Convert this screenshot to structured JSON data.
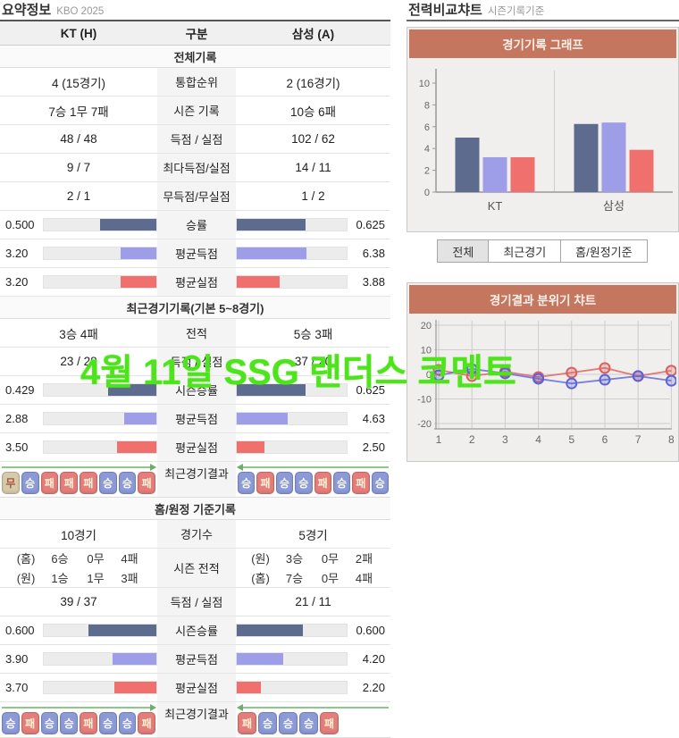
{
  "summary": {
    "title": "요약정보",
    "subtitle": "KBO 2025",
    "columns": {
      "home": "KT (H)",
      "label": "구분",
      "away": "삼성 (A)"
    },
    "badge_colors": {
      "승": "#8c9ad8",
      "패": "#e57e7b",
      "무": "#d5caa9"
    },
    "badge_text_colors": {
      "승": "#ffffff",
      "패": "#fdf3d8",
      "무": "#a8553f"
    },
    "sections": [
      {
        "header": "전체기록",
        "rows": [
          {
            "type": "text",
            "label": "통합순위",
            "home": "4 (15경기)",
            "away": "2 (16경기)"
          },
          {
            "type": "text",
            "label": "시즌 기록",
            "home": "7승 1무 7패",
            "away": "10승 6패"
          },
          {
            "type": "text",
            "label": "득점 / 실점",
            "home": "48 / 48",
            "away": "102 / 62"
          },
          {
            "type": "text",
            "label": "최다득점/실점",
            "home": "9 / 7",
            "away": "14 / 11"
          },
          {
            "type": "text",
            "label": "무득점/무실점",
            "home": "2 / 1",
            "away": "1 / 2"
          },
          {
            "type": "bar",
            "label": "승률",
            "home": "0.500",
            "away": "0.625",
            "home_pct": 50,
            "away_pct": 62.5,
            "color": "#5d6c8e"
          },
          {
            "type": "bar",
            "label": "평균득점",
            "home": "3.20",
            "away": "6.38",
            "home_pct": 32,
            "away_pct": 63.8,
            "color": "#9d9de8"
          },
          {
            "type": "bar",
            "label": "평균실점",
            "home": "3.20",
            "away": "3.88",
            "home_pct": 32,
            "away_pct": 38.8,
            "color": "#f0706e"
          }
        ]
      },
      {
        "header": "최근경기기록(기본 5~8경기)",
        "rows": [
          {
            "type": "text",
            "label": "전적",
            "home": "3승 4패",
            "away": "5승 3패"
          },
          {
            "type": "text",
            "label": "득점 / 실점",
            "home": "23 / 28",
            "away": "37 / 20"
          },
          {
            "type": "bar",
            "label": "시즌승률",
            "home": "0.429",
            "away": "0.625",
            "home_pct": 42.9,
            "away_pct": 62.5,
            "color": "#5d6c8e"
          },
          {
            "type": "bar",
            "label": "평균득점",
            "home": "2.88",
            "away": "4.63",
            "home_pct": 28.8,
            "away_pct": 46.3,
            "color": "#9d9de8"
          },
          {
            "type": "bar",
            "label": "평균실점",
            "home": "3.50",
            "away": "2.50",
            "home_pct": 35,
            "away_pct": 25,
            "color": "#f0706e"
          },
          {
            "type": "badges",
            "label": "최근경기결과",
            "home": [
              "무",
              "승",
              "패",
              "패",
              "패",
              "승",
              "승",
              "패"
            ],
            "away": [
              "승",
              "패",
              "승",
              "승",
              "패",
              "승",
              "패",
              "승"
            ]
          }
        ]
      },
      {
        "header": "홈/원정 기준기록",
        "rows": [
          {
            "type": "text",
            "label": "경기수",
            "home": "10경기",
            "away": "5경기"
          },
          {
            "type": "lines",
            "label": "시즌 전적",
            "home": [
              [
                "(홈)",
                "6승",
                "0무",
                "4패"
              ],
              [
                "(원)",
                "1승",
                "1무",
                "3패"
              ]
            ],
            "away": [
              [
                "(원)",
                "3승",
                "0무",
                "2패"
              ],
              [
                "(홈)",
                "7승",
                "0무",
                "4패"
              ]
            ]
          },
          {
            "type": "text",
            "label": "득점 / 실점",
            "home": "39 / 37",
            "away": "21 / 11"
          },
          {
            "type": "bar",
            "label": "시즌승률",
            "home": "0.600",
            "away": "0.600",
            "home_pct": 60,
            "away_pct": 60,
            "color": "#5d6c8e"
          },
          {
            "type": "bar",
            "label": "평균득점",
            "home": "3.90",
            "away": "4.20",
            "home_pct": 39,
            "away_pct": 42,
            "color": "#9d9de8"
          },
          {
            "type": "bar",
            "label": "평균실점",
            "home": "3.70",
            "away": "2.20",
            "home_pct": 37,
            "away_pct": 22,
            "color": "#f0706e"
          },
          {
            "type": "badges",
            "label": "최근경기결과",
            "home": [
              "승",
              "패",
              "승",
              "승",
              "패",
              "승",
              "승",
              "패"
            ],
            "away": [
              "패",
              "승",
              "승",
              "승",
              "패"
            ]
          }
        ]
      }
    ]
  },
  "comparison": {
    "title": "전력비교챠트",
    "subtitle": "시즌기록기준",
    "tabs": [
      {
        "label": "전체",
        "active": true
      },
      {
        "label": "최근경기",
        "active": false
      },
      {
        "label": "홈/원정기준",
        "active": false
      }
    ]
  },
  "chart_data": [
    {
      "type": "bar",
      "title": "경기기록 그래프",
      "categories": [
        "KT",
        "삼성"
      ],
      "series": [
        {
          "color": "#5d6c8e",
          "values": [
            5.0,
            6.25
          ]
        },
        {
          "color": "#9d9de8",
          "values": [
            3.2,
            6.38
          ]
        },
        {
          "color": "#f0706e",
          "values": [
            3.2,
            3.88
          ]
        }
      ],
      "ylim": [
        0,
        10
      ],
      "yticks": [
        0,
        2,
        4,
        6,
        8,
        10
      ],
      "legend": "none",
      "grid": "center-divider"
    },
    {
      "type": "line",
      "title": "경기결과 분위기 챠트",
      "x": [
        1,
        2,
        3,
        4,
        5,
        6,
        7,
        8
      ],
      "ylim": [
        -20,
        20
      ],
      "yticks": [
        -20,
        -10,
        0,
        10,
        20
      ],
      "legend": "none",
      "grid": "on",
      "series": [
        {
          "color": "#dd5f5d",
          "values": [
            1.8,
            -0.7,
            1.1,
            -1.1,
            0.7,
            2.6,
            -0.7,
            1.5
          ]
        },
        {
          "color": "#5b63d8",
          "values": [
            -0.4,
            2.2,
            0.4,
            -1.8,
            -3.7,
            -2.2,
            -0.7,
            -2.6
          ]
        }
      ]
    }
  ],
  "overlay": {
    "text": "4월 11일 SSG 랜더스 코멘트",
    "color": "#4ee41c"
  }
}
